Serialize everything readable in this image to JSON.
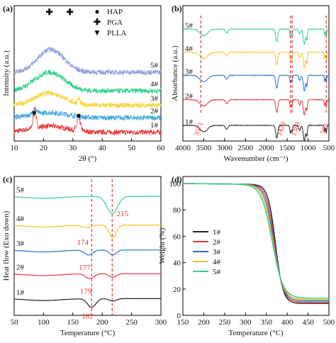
{
  "chart_data": [
    {
      "panel": "(a)",
      "type": "line",
      "title": "",
      "xlabel": "2θ (°)",
      "ylabel": "Intensity (a.u.)",
      "xlim": [
        10,
        60
      ],
      "xticks": [
        10,
        20,
        30,
        40,
        50,
        60
      ],
      "grid": false,
      "legend_position": "top-right",
      "legend": [
        {
          "marker": "●",
          "label": "HAP"
        },
        {
          "marker": "✚",
          "label": "PGA"
        },
        {
          "marker": "▼",
          "label": "PLLA"
        }
      ],
      "peak_markers": [
        {
          "marker": "✚",
          "x": 22.0
        },
        {
          "marker": "✚",
          "x": 29.0
        },
        {
          "marker": "▼",
          "x": 16.8
        },
        {
          "marker": "●",
          "x": 32.0
        }
      ],
      "series": [
        {
          "name": "1#",
          "color": "#e8323a",
          "baseline": 0.0,
          "peaks": [
            {
              "x": 17,
              "h": 0.18,
              "w": 0.5
            },
            {
              "x": 32,
              "h": 0.12,
              "w": 0.6
            },
            {
              "x": 22,
              "h": 0.06,
              "w": 6
            }
          ]
        },
        {
          "name": "2#",
          "color": "#3da8dd",
          "baseline": 0.14,
          "peaks": [
            {
              "x": 17,
              "h": 0.06,
              "w": 0.6
            },
            {
              "x": 22,
              "h": 0.05,
              "w": 6
            }
          ]
        },
        {
          "name": "3#",
          "color": "#f4d43b",
          "baseline": 0.26,
          "peaks": [
            {
              "x": 22,
              "h": 0.12,
              "w": 5
            },
            {
              "x": 32,
              "h": 0.05,
              "w": 0.4
            }
          ]
        },
        {
          "name": "4#",
          "color": "#2fcf8c",
          "baseline": 0.4,
          "peaks": [
            {
              "x": 22,
              "h": 0.18,
              "w": 5
            }
          ]
        },
        {
          "name": "5#",
          "color": "#8d9ddb",
          "baseline": 0.58,
          "peaks": [
            {
              "x": 22.5,
              "h": 0.22,
              "w": 4.5
            }
          ]
        }
      ]
    },
    {
      "panel": "(b)",
      "type": "line",
      "title": "",
      "xlabel": "Wavenumber (cm⁻¹)",
      "ylabel": "Absorbance (a.u.)",
      "xlim": [
        4000,
        500
      ],
      "xticks": [
        4000,
        3500,
        3000,
        2500,
        2000,
        1500,
        1000,
        500
      ],
      "grid": false,
      "reference_lines": [
        3571,
        1423,
        1383,
        563
      ],
      "reference_labels": [
        "3571",
        "1423",
        "1383",
        "563"
      ],
      "series": [
        {
          "name": "1#",
          "color": "#222222",
          "baseline": 0.1
        },
        {
          "name": "2#",
          "color": "#e8323a",
          "baseline": 0.3
        },
        {
          "name": "3#",
          "color": "#1f73c8",
          "baseline": 0.49
        },
        {
          "name": "4#",
          "color": "#f4c21f",
          "baseline": 0.67
        },
        {
          "name": "5#",
          "color": "#2fcf8c",
          "baseline": 0.85
        }
      ],
      "bands": [
        {
          "x": 3500,
          "d": 0.05,
          "w": 90
        },
        {
          "x": 2950,
          "d": 0.03,
          "w": 30
        },
        {
          "x": 1750,
          "d": 0.1,
          "w": 25
        },
        {
          "x": 1423,
          "d": 0.06,
          "w": 15
        },
        {
          "x": 1383,
          "d": 0.05,
          "w": 12
        },
        {
          "x": 1200,
          "d": 0.04,
          "w": 20
        },
        {
          "x": 1090,
          "d": 0.12,
          "w": 25
        },
        {
          "x": 1030,
          "d": 0.08,
          "w": 15
        },
        {
          "x": 600,
          "d": 0.05,
          "w": 10
        },
        {
          "x": 563,
          "d": 0.06,
          "w": 10
        }
      ]
    },
    {
      "panel": "(c)",
      "type": "line",
      "title": "",
      "xlabel": "Temperature (°C)",
      "ylabel": "Heat flow (Exo down)",
      "xlim": [
        50,
        300
      ],
      "xticks": [
        50,
        100,
        150,
        200,
        250,
        300
      ],
      "grid": false,
      "reference_lines": [
        182,
        217
      ],
      "series": [
        {
          "name": "1#",
          "color": "#222222",
          "baseline": 0.1,
          "peak_label": "182",
          "peak_label_x": 182,
          "dips": [
            {
              "x": 182,
              "d": 0.07,
              "w": 7
            },
            {
              "x": 218,
              "d": 0.02,
              "w": 6
            }
          ]
        },
        {
          "name": "2#",
          "color": "#e8323a",
          "baseline": 0.3,
          "peak_label": "179",
          "peak_label_x": 179,
          "dips": [
            {
              "x": 179,
              "d": 0.04,
              "w": 7
            },
            {
              "x": 218,
              "d": 0.03,
              "w": 6
            }
          ]
        },
        {
          "name": "3#",
          "color": "#1f73c8",
          "baseline": 0.49,
          "peak_label": "177",
          "peak_label_x": 177,
          "dips": [
            {
              "x": 177,
              "d": 0.04,
              "w": 7
            },
            {
              "x": 218,
              "d": 0.04,
              "w": 6
            }
          ]
        },
        {
          "name": "4#",
          "color": "#f4c21f",
          "baseline": 0.69,
          "peak_label": "174",
          "peak_label_x": 174,
          "dips": [
            {
              "x": 174,
              "d": 0.02,
              "w": 7
            },
            {
              "x": 218,
              "d": 0.1,
              "w": 6
            }
          ]
        },
        {
          "name": "5#",
          "color": "#2fcf8c",
          "baseline": 0.92,
          "peak_label": "215",
          "peak_label_x": 215,
          "dips": [
            {
              "x": 217,
              "d": 0.14,
              "w": 9
            }
          ]
        }
      ]
    },
    {
      "panel": "(d)",
      "type": "line",
      "title": "",
      "xlabel": "Temperature (°C)",
      "ylabel": "Weight (%)",
      "xlim": [
        150,
        500
      ],
      "ylim": [
        0,
        100
      ],
      "xticks": [
        150,
        200,
        250,
        300,
        350,
        400,
        450,
        500
      ],
      "yticks": [
        0,
        20,
        40,
        60,
        80,
        100
      ],
      "grid": false,
      "legend_position": "center-left",
      "series": [
        {
          "name": "1#",
          "color": "#222222",
          "residue": 9,
          "t_mid": 372,
          "width": 9
        },
        {
          "name": "2#",
          "color": "#e8323a",
          "residue": 10,
          "t_mid": 370,
          "width": 10
        },
        {
          "name": "3#",
          "color": "#1f73c8",
          "residue": 11,
          "t_mid": 368,
          "width": 11
        },
        {
          "name": "4#",
          "color": "#f4c21f",
          "residue": 12,
          "t_mid": 366,
          "width": 12
        },
        {
          "name": "5#",
          "color": "#2fcf8c",
          "residue": 13,
          "t_mid": 364,
          "width": 13
        }
      ]
    }
  ]
}
